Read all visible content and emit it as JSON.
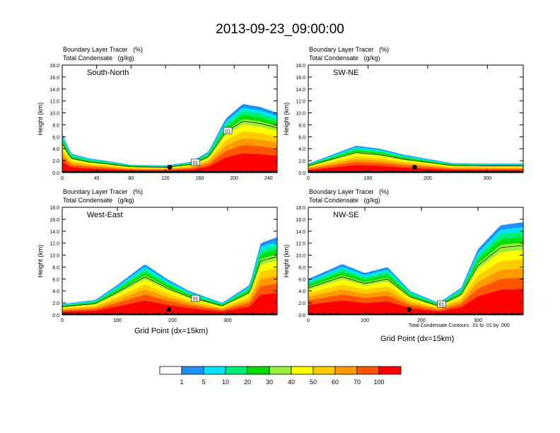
{
  "title": "2013-09-23_09:00:00",
  "left_label": "Boundary Layer Tracer",
  "left_label_2": "Total Condensate",
  "right_label": "(%)",
  "right_label_2": "(g/kg)",
  "ylabel": "Height (km)",
  "xlabel": "Grid Point (dx=15km)",
  "contour_note": "Total Condensate Contours: .01 to .01 by .000",
  "colorbar": {
    "colors": [
      "#ffffff",
      "#1e90ff",
      "#00e5ff",
      "#00ee76",
      "#00dd00",
      "#9aee3a",
      "#ffff00",
      "#ffcc00",
      "#ff9900",
      "#ff5500",
      "#ff0000"
    ],
    "labels": [
      "1",
      "5",
      "10",
      "20",
      "30",
      "40",
      "50",
      "60",
      "70",
      "100"
    ]
  },
  "chart_data": [
    {
      "type": "heatmap",
      "panel_title": "South-North",
      "xlim": [
        0,
        250
      ],
      "ylim": [
        0,
        18
      ],
      "xticks": [
        "0",
        "40",
        "80",
        "120",
        "160",
        "200",
        "240"
      ],
      "yticks": [
        "0.0",
        "2.0",
        "4.0",
        "6.0",
        "8.0",
        "10.0",
        "12.0",
        "14.0",
        "16.0",
        "18.0"
      ],
      "contour_labels": [
        "01",
        "01"
      ],
      "bl_top_km": [
        [
          0,
          6.5
        ],
        [
          10,
          3.2
        ],
        [
          30,
          2.4
        ],
        [
          50,
          2.0
        ],
        [
          80,
          1.3
        ],
        [
          120,
          1.2
        ],
        [
          150,
          1.8
        ],
        [
          170,
          3.5
        ],
        [
          190,
          9.0
        ],
        [
          210,
          11.5
        ],
        [
          230,
          11.0
        ],
        [
          250,
          10.0
        ]
      ],
      "marker": [
        125,
        0.9
      ]
    },
    {
      "type": "heatmap",
      "panel_title": "SW-NE",
      "xlim": [
        0,
        360
      ],
      "ylim": [
        0,
        18
      ],
      "xticks": [
        "0",
        "100",
        "200",
        "300"
      ],
      "yticks": [
        "0.0",
        "2.0",
        "4.0",
        "6.0",
        "8.0",
        "10.0",
        "12.0",
        "14.0",
        "16.0",
        "18.0"
      ],
      "contour_labels": [],
      "bl_top_km": [
        [
          0,
          1.5
        ],
        [
          40,
          3.0
        ],
        [
          80,
          4.5
        ],
        [
          120,
          4.0
        ],
        [
          160,
          3.0
        ],
        [
          200,
          2.3
        ],
        [
          240,
          1.6
        ],
        [
          300,
          1.5
        ],
        [
          360,
          1.5
        ]
      ],
      "marker": [
        178,
        0.9
      ]
    },
    {
      "type": "heatmap",
      "panel_title": "West-East",
      "xlim": [
        0,
        390
      ],
      "ylim": [
        0,
        18
      ],
      "xticks": [
        "0",
        "100",
        "200",
        "300"
      ],
      "yticks": [
        "0.0",
        "2.0",
        "4.0",
        "6.0",
        "8.0",
        "10.0",
        "12.0",
        "14.0",
        "16.0",
        "18.0"
      ],
      "contour_labels": [
        "01"
      ],
      "bl_top_km": [
        [
          0,
          1.8
        ],
        [
          60,
          2.5
        ],
        [
          100,
          5.0
        ],
        [
          150,
          8.5
        ],
        [
          190,
          6.0
        ],
        [
          230,
          4.0
        ],
        [
          290,
          2.0
        ],
        [
          340,
          5.0
        ],
        [
          360,
          12.0
        ],
        [
          390,
          13.0
        ]
      ],
      "marker": [
        193,
        0.9
      ]
    },
    {
      "type": "heatmap",
      "panel_title": "NW-SE",
      "xlim": [
        0,
        380
      ],
      "ylim": [
        0,
        18
      ],
      "xticks": [
        "0",
        "100",
        "200",
        "300"
      ],
      "yticks": [
        "0.0",
        "2.0",
        "4.0",
        "6.0",
        "8.0",
        "10.0",
        "12.0",
        "14.0",
        "16.0",
        "18.0"
      ],
      "contour_labels": [
        "01"
      ],
      "bl_top_km": [
        [
          0,
          6.0
        ],
        [
          60,
          8.5
        ],
        [
          100,
          7.0
        ],
        [
          140,
          8.0
        ],
        [
          180,
          4.0
        ],
        [
          230,
          2.0
        ],
        [
          270,
          4.5
        ],
        [
          300,
          11.0
        ],
        [
          340,
          15.0
        ],
        [
          380,
          15.5
        ]
      ],
      "marker": [
        178,
        0.9
      ]
    }
  ]
}
